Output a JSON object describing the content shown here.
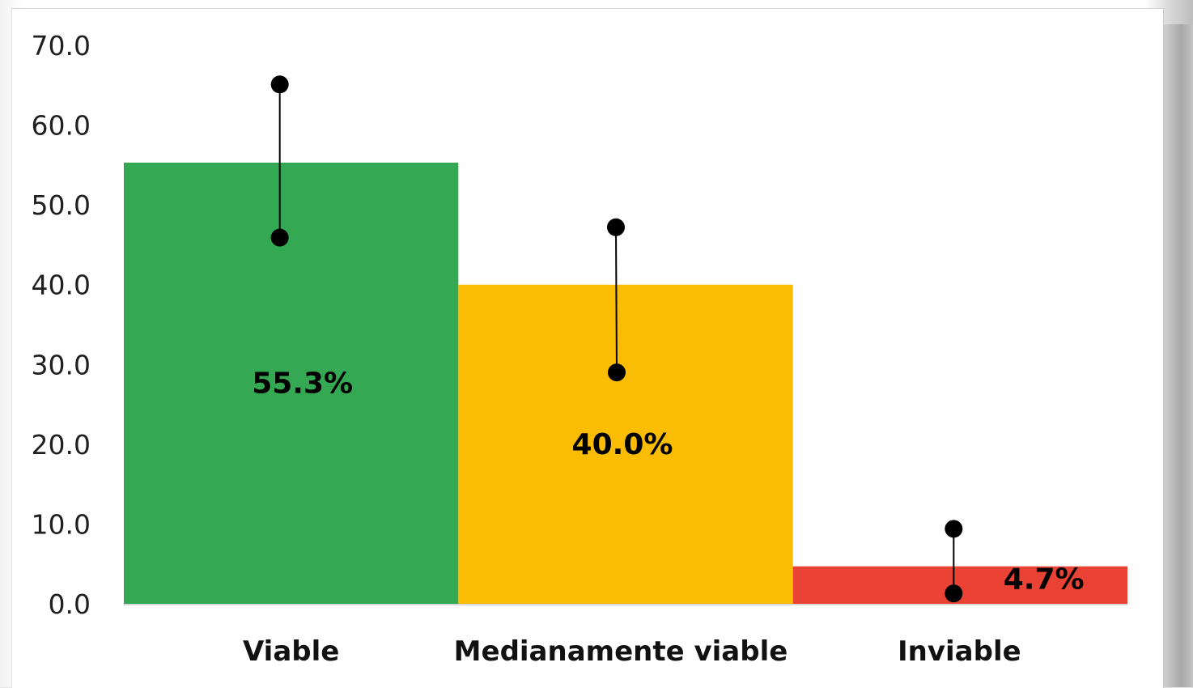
{
  "chart_data": {
    "type": "bar",
    "categories": [
      "Viable",
      "Medianamente viable",
      "Inviable"
    ],
    "values": [
      55.3,
      40.0,
      4.7
    ],
    "data_labels": [
      "55.3%",
      "40.0%",
      "4.7%"
    ],
    "error_bars": [
      {
        "low": 45.9,
        "high": 65.1
      },
      {
        "low": 29.0,
        "high": 47.2
      },
      {
        "low": 1.3,
        "high": 9.4
      }
    ],
    "colors": [
      "#34a853",
      "#fbbc04",
      "#ea4335"
    ],
    "ylim": [
      0,
      70
    ],
    "yticks": [
      "0.0",
      "10.0",
      "20.0",
      "30.0",
      "40.0",
      "50.0",
      "60.0",
      "70.0"
    ],
    "title": "",
    "xlabel": "",
    "ylabel": "",
    "grid": false,
    "legend": "none"
  }
}
